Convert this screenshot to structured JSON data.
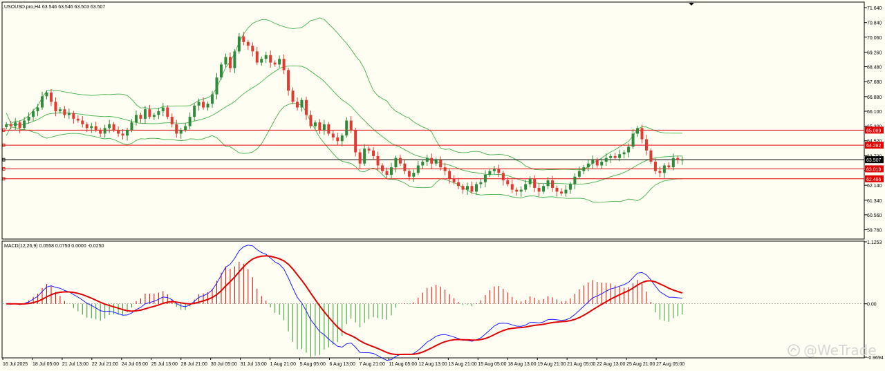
{
  "price_header": "USOUSD.pro,H4  63.546 63.546 63.503 63.507",
  "macd_header": "MACD(12,26,9) 0.0558 0.0750 0.0000 -0.0250",
  "watermark": "@WeTrade",
  "colors": {
    "background": "#fffef2",
    "bull": "#2e8b3a",
    "bear": "#e23a32",
    "band": "#43b04a",
    "level": "#e00000",
    "macd_line": "#1a1aff",
    "signal_line": "#e00000",
    "hist_pos": "#e00000",
    "hist_neg": "#2e9a2e"
  },
  "chart_data": [
    {
      "type": "candlestick",
      "name": "USOUSD.pro,H4",
      "ylim": [
        59.3,
        71.9
      ],
      "price_ticks": [
        "71.640",
        "70.840",
        "70.060",
        "69.260",
        "68.480",
        "67.680",
        "66.880",
        "66.100",
        "65.300",
        "64.520",
        "63.720",
        "62.940",
        "62.140",
        "61.340",
        "60.560",
        "59.760"
      ],
      "price_tick_values": [
        71.64,
        70.84,
        70.06,
        69.26,
        68.48,
        67.68,
        66.88,
        66.1,
        65.3,
        64.52,
        63.72,
        62.94,
        62.14,
        61.34,
        60.56,
        59.76
      ],
      "levels": [
        {
          "label": "65.089",
          "value": 65.089,
          "color": "#e00000"
        },
        {
          "label": "64.282",
          "value": 64.282,
          "color": "#e00000"
        },
        {
          "label": "63.507",
          "value": 63.507,
          "color": "#000000"
        },
        {
          "label": "63.018",
          "value": 63.018,
          "color": "#e00000"
        },
        {
          "label": "62.486",
          "value": 62.486,
          "color": "#e00000"
        }
      ],
      "closes": [
        65.4,
        65.3,
        65.5,
        65.2,
        65.6,
        65.8,
        66.1,
        66.3,
        66.9,
        67.1,
        66.6,
        66.1,
        66.2,
        65.9,
        66.0,
        65.7,
        65.6,
        65.4,
        65.2,
        65.3,
        65.1,
        64.9,
        65.2,
        65.4,
        65.1,
        64.9,
        64.8,
        65.1,
        65.5,
        65.9,
        65.7,
        66.2,
        65.8,
        65.9,
        66.1,
        66.3,
        65.8,
        65.4,
        64.9,
        65.1,
        65.3,
        65.8,
        66.4,
        66.6,
        66.3,
        66.5,
        67.0,
        67.9,
        68.6,
        69.0,
        68.4,
        69.3,
        70.1,
        69.8,
        69.6,
        69.3,
        68.7,
        68.9,
        69.1,
        68.7,
        68.6,
        68.9,
        68.3,
        67.2,
        66.6,
        66.3,
        66.7,
        65.9,
        65.3,
        65.5,
        65.1,
        65.4,
        64.9,
        64.7,
        64.5,
        64.8,
        65.6,
        65.1,
        63.9,
        63.3,
        64.1,
        64.0,
        63.7,
        63.2,
        62.9,
        62.7,
        63.1,
        63.6,
        63.3,
        62.9,
        62.6,
        62.8,
        63.2,
        63.4,
        63.6,
        63.3,
        63.5,
        63.1,
        62.9,
        62.5,
        62.3,
        62.1,
        61.9,
        62.1,
        61.8,
        62.2,
        62.3,
        62.7,
        62.9,
        63.0,
        62.8,
        62.4,
        62.2,
        61.9,
        61.8,
        61.9,
        62.2,
        62.5,
        62.0,
        61.8,
        62.1,
        62.4,
        62.0,
        61.8,
        61.7,
        61.9,
        62.2,
        62.6,
        62.9,
        63.1,
        63.3,
        63.5,
        63.2,
        63.4,
        63.6,
        63.7,
        63.6,
        63.8,
        63.9,
        64.2,
        64.9,
        65.2,
        64.6,
        64.0,
        63.4,
        62.9,
        62.8,
        63.2,
        63.1,
        63.6,
        63.5,
        63.5
      ],
      "x_labels": [
        "16 Jul 2025",
        "18 Jul 05:00",
        "21 Jul 13:00",
        "22 Jul 21:00",
        "24 Jul 05:00",
        "25 Jul 13:00",
        "28 Jul 21:00",
        "30 Jul 05:00",
        "31 Jul 13:00",
        "1 Aug 21:00",
        "5 Aug 05:00",
        "6 Aug 13:00",
        "7 Aug 21:00",
        "11 Aug 05:00",
        "12 Aug 13:00",
        "13 Aug 21:00",
        "15 Aug 05:00",
        "18 Aug 13:00",
        "19 Aug 21:00",
        "21 Aug 05:00",
        "22 Aug 13:00",
        "25 Aug 21:00",
        "27 Aug 05:00"
      ]
    },
    {
      "type": "macd",
      "name": "MACD(12,26,9)",
      "ylim": [
        -0.9694,
        1.1253
      ],
      "y_ticks": [
        "1.1253",
        "0.00",
        "-0.9694"
      ],
      "y_tick_values": [
        1.1253,
        0.0,
        -0.9694
      ]
    }
  ]
}
